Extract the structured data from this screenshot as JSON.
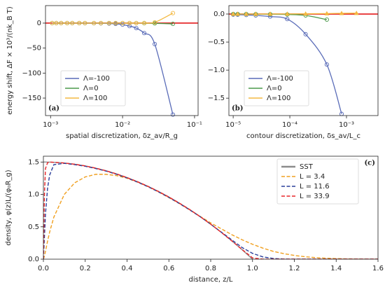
{
  "chart_data": [
    {
      "type": "line",
      "panel_label": "(a)",
      "xscale": "log",
      "xlabel": "spatial discretization, δz_av/R_g",
      "ylabel": "energy shift, ΔF × 10³/(nk_B T)",
      "xlim": [
        0.00085,
        0.112
      ],
      "ylim": [
        -185,
        35
      ],
      "xticks": [
        {
          "value": 0.001,
          "label": "10⁻³"
        },
        {
          "value": 0.01,
          "label": "10⁻²"
        },
        {
          "value": 0.1,
          "label": "10⁻¹"
        }
      ],
      "yticks": [
        0,
        {
          "value": -50,
          "label": "−50"
        },
        {
          "value": -100,
          "label": "−100"
        },
        {
          "value": -150,
          "label": "−150"
        }
      ],
      "hline": {
        "value": 0,
        "color": "#e41a1c"
      },
      "legend": "lower left",
      "smooth": true,
      "series": [
        {
          "name": "Λ=-100",
          "color": "#5a6cb8",
          "marker": "circle",
          "x": [
            0.00105,
            0.0012,
            0.0014,
            0.0017,
            0.002,
            0.0025,
            0.003,
            0.004,
            0.005,
            0.0065,
            0.008,
            0.01,
            0.0125,
            0.0155,
            0.02,
            0.028,
            0.05
          ],
          "values": [
            0,
            0,
            0,
            0,
            0,
            0,
            -0.1,
            -0.2,
            -0.4,
            -0.8,
            -1.5,
            -3,
            -6,
            -10,
            -20,
            -42,
            -183
          ]
        },
        {
          "name": "Λ=0",
          "color": "#4c9a4c",
          "marker": "circle",
          "x": [
            0.00105,
            0.0012,
            0.0014,
            0.0017,
            0.002,
            0.0025,
            0.003,
            0.004,
            0.005,
            0.0065,
            0.008,
            0.01,
            0.0125,
            0.0155,
            0.02,
            0.028,
            0.05
          ],
          "values": [
            0,
            0,
            0,
            0,
            0,
            0,
            0,
            0,
            0,
            0,
            0,
            0,
            0,
            0,
            -0.2,
            -0.5,
            -1.5
          ]
        },
        {
          "name": "Λ=100",
          "color": "#f4b942",
          "marker": "circle",
          "x": [
            0.00105,
            0.0012,
            0.0014,
            0.0017,
            0.002,
            0.0025,
            0.003,
            0.004,
            0.005,
            0.0065,
            0.008,
            0.01,
            0.0125,
            0.0155,
            0.02,
            0.028,
            0.05
          ],
          "values": [
            0,
            0,
            0,
            0,
            0,
            0,
            0,
            0,
            0,
            0,
            0,
            0,
            0,
            0.1,
            0.3,
            1.5,
            20
          ]
        }
      ]
    },
    {
      "type": "line",
      "panel_label": "(b)",
      "xscale": "log",
      "xlabel": "contour discretization, δs_av/L_c",
      "xlim": [
        8.4e-06,
        0.0036
      ],
      "ylim": [
        -1.81,
        0.15
      ],
      "xticks": [
        {
          "value": 1e-05,
          "label": "10⁻⁵"
        },
        {
          "value": 0.0001,
          "label": "10⁻⁴"
        },
        {
          "value": 0.001,
          "label": "10⁻³"
        }
      ],
      "yticks": [
        {
          "value": 0,
          "label": "0.0"
        },
        {
          "value": -0.5,
          "label": "−0.5"
        },
        {
          "value": -1,
          "label": "−1.0"
        },
        {
          "value": -1.5,
          "label": "−1.5"
        }
      ],
      "hline": {
        "value": 0,
        "color": "#e41a1c"
      },
      "legend": "lower left",
      "smooth": true,
      "series": [
        {
          "name": "Λ=-100",
          "color": "#5a6cb8",
          "marker": "circle",
          "x": [
            1e-05,
            1.2e-05,
            1.7e-05,
            2.5e-05,
            4.5e-05,
            9e-05,
            0.00019,
            0.00045,
            0.00082
          ],
          "values": [
            -0.01,
            -0.012,
            -0.017,
            -0.025,
            -0.045,
            -0.09,
            -0.36,
            -0.9,
            -1.78
          ]
        },
        {
          "name": "Λ=0",
          "color": "#4c9a4c",
          "marker": "circle",
          "x": [
            1e-05,
            1.2e-05,
            1.7e-05,
            2.5e-05,
            4.5e-05,
            9e-05,
            0.00019,
            0.00045
          ],
          "values": [
            0,
            0,
            0,
            -0.002,
            -0.004,
            -0.008,
            -0.025,
            -0.1
          ]
        },
        {
          "name": "Λ=100",
          "color": "#f4b942",
          "marker": "triangle",
          "x": [
            1e-05,
            1.2e-05,
            1.7e-05,
            2.5e-05,
            4.5e-05,
            9e-05,
            0.00019,
            0.00045,
            0.00082,
            0.0015
          ],
          "values": [
            0,
            0,
            0,
            0,
            0.001,
            0.002,
            0.004,
            0.008,
            0.012,
            0.015
          ]
        }
      ]
    },
    {
      "type": "line",
      "panel_label": "(c)",
      "xscale": "linear",
      "xlabel": "distance, z/L",
      "ylabel": "density, φ(z)L/(φ₀R_g)",
      "xlim": [
        0,
        1.6
      ],
      "ylim": [
        0,
        1.59
      ],
      "xticks": [
        {
          "value": 0,
          "label": "0.0"
        },
        0.2,
        0.4,
        0.6,
        0.8,
        {
          "value": 1,
          "label": "1.0"
        },
        1.2,
        1.4,
        1.6
      ],
      "yticks": [
        {
          "value": 0,
          "label": "0.0"
        },
        0.5,
        {
          "value": 1,
          "label": "1.0"
        },
        1.5
      ],
      "legend": "upper right",
      "smooth": false,
      "x": [
        0,
        0.005,
        0.01,
        0.02,
        0.03,
        0.05,
        0.1,
        0.15,
        0.2,
        0.25,
        0.3,
        0.35,
        0.4,
        0.45,
        0.5,
        0.55,
        0.6,
        0.65,
        0.7,
        0.75,
        0.8,
        0.85,
        0.9,
        0.95,
        1.0,
        1.05,
        1.1,
        1.15,
        1.2,
        1.25,
        1.3,
        1.35,
        1.4,
        1.45,
        1.5,
        1.55,
        1.6
      ],
      "series": [
        {
          "name": "SST",
          "color": "#8c8c8c",
          "dash": false,
          "values": [
            1.5,
            1.5,
            1.5,
            1.499,
            1.499,
            1.496,
            1.485,
            1.466,
            1.44,
            1.406,
            1.365,
            1.316,
            1.26,
            1.196,
            1.125,
            1.046,
            0.96,
            0.866,
            0.765,
            0.656,
            0.54,
            0.416,
            0.285,
            0.146,
            0,
            null,
            null,
            null,
            null,
            null,
            null,
            null,
            null,
            null,
            null,
            null,
            null
          ]
        },
        {
          "name": "L = 3.4",
          "color": "#f0a020",
          "dash": true,
          "values": [
            0,
            0.05,
            0.12,
            0.28,
            0.42,
            0.65,
            1.0,
            1.18,
            1.27,
            1.31,
            1.31,
            1.29,
            1.25,
            1.19,
            1.12,
            1.04,
            0.95,
            0.86,
            0.76,
            0.66,
            0.56,
            0.47,
            0.38,
            0.3,
            0.23,
            0.17,
            0.12,
            0.085,
            0.058,
            0.038,
            0.024,
            0.015,
            0.009,
            0.005,
            0.003,
            0.001,
            0
          ]
        },
        {
          "name": "L = 11.6",
          "color": "#2a3e9a",
          "dash": true,
          "values": [
            0,
            0.35,
            0.7,
            1.1,
            1.3,
            1.46,
            1.48,
            1.46,
            1.435,
            1.4,
            1.36,
            1.31,
            1.255,
            1.19,
            1.12,
            1.04,
            0.955,
            0.86,
            0.76,
            0.655,
            0.54,
            0.42,
            0.3,
            0.18,
            0.09,
            0.035,
            0.01,
            0.002,
            0,
            0,
            0,
            0,
            0,
            0,
            0,
            0,
            0
          ]
        },
        {
          "name": "L = 33.9",
          "color": "#e8262a",
          "dash": true,
          "values": [
            0,
            1.0,
            1.4,
            1.49,
            1.499,
            1.496,
            1.485,
            1.466,
            1.44,
            1.406,
            1.365,
            1.316,
            1.26,
            1.196,
            1.125,
            1.046,
            0.96,
            0.866,
            0.765,
            0.656,
            0.54,
            0.416,
            0.285,
            0.15,
            0.02,
            0,
            0,
            0,
            0,
            0,
            0,
            0,
            0,
            0,
            0,
            0,
            0
          ]
        }
      ]
    }
  ]
}
